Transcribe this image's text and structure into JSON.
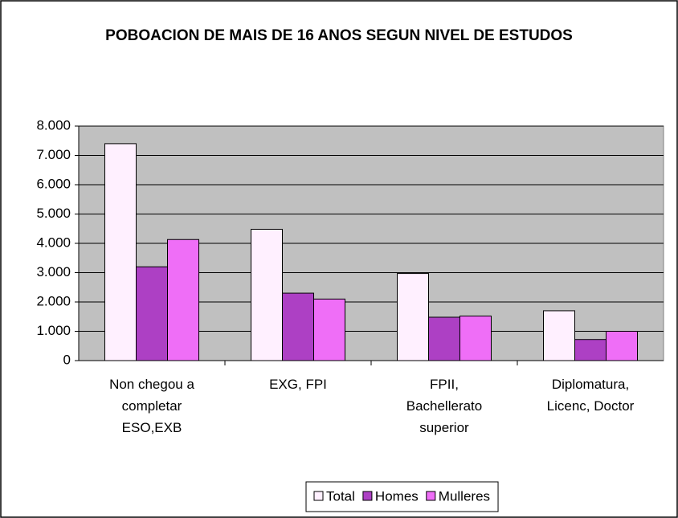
{
  "chart_data": {
    "type": "bar",
    "title": "POBOACION DE MAIS DE 16 ANOS SEGUN NIVEL DE ESTUDOS",
    "categories": [
      "Non chegou a completar ESO,EXB",
      "EXG, FPI",
      "FPII, Bachellerato superior",
      "Diplomatura, Licenc, Doctor"
    ],
    "series": [
      {
        "name": "Total",
        "color": "#fff0ff",
        "values": [
          7400,
          4480,
          2970,
          1700
        ]
      },
      {
        "name": "Homes",
        "color": "#ad40c4",
        "values": [
          3200,
          2300,
          1480,
          720
        ]
      },
      {
        "name": "Mulleres",
        "color": "#ef6ef7",
        "values": [
          4130,
          2100,
          1520,
          1000
        ]
      }
    ],
    "ylim": [
      0,
      8000
    ],
    "yticks": [
      0,
      {
        "value": 1000,
        "label": "1.000"
      },
      {
        "value": 2000,
        "label": "2.000"
      },
      {
        "value": 3000,
        "label": "3.000"
      },
      {
        "value": 4000,
        "label": "4.000"
      },
      {
        "value": 5000,
        "label": "5.000"
      },
      {
        "value": 6000,
        "label": "6.000"
      },
      {
        "value": 7000,
        "label": "7.000"
      },
      {
        "value": 8000,
        "label": "8.000"
      }
    ],
    "grid": true,
    "legend": "bottom"
  }
}
